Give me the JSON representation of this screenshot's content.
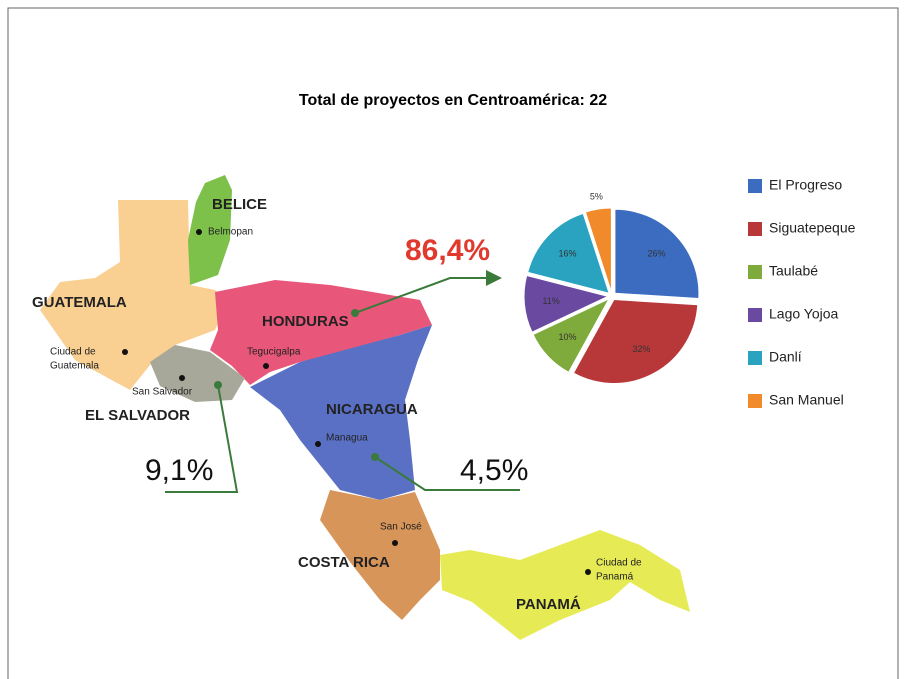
{
  "title": "Total de proyectos en Centroamérica: 22",
  "map": {
    "countries": [
      "BELICE",
      "GUATEMALA",
      "HONDURAS",
      "EL SALVADOR",
      "NICARAGUA",
      "COSTA RICA",
      "PANAMÁ"
    ],
    "cities": [
      [
        "Belmopan"
      ],
      [
        "Ciudad de",
        "Guatemala"
      ],
      [
        "San Salvador"
      ],
      [
        "Tegucigalpa"
      ],
      [
        "Managua"
      ],
      [
        "San José"
      ],
      [
        "Ciudad de",
        "Panamá"
      ]
    ],
    "shares": [
      "86,4%",
      "9,1%",
      "4,5%"
    ]
  },
  "chart_data": {
    "type": "pie",
    "categories": [
      "El Progreso",
      "Siguatepeque",
      "Taulabé",
      "Lago Yojoa",
      "Danlí",
      "San Manuel"
    ],
    "values": [
      26,
      32,
      10,
      11,
      16,
      5
    ],
    "value_labels": [
      "26%",
      "32%",
      "10%",
      "11%",
      "16%",
      "5%"
    ],
    "colors": [
      "#3b6cc0",
      "#b8383a",
      "#7faa3c",
      "#6a4aa0",
      "#2aa3c0",
      "#f08a2a"
    ],
    "legend": "right"
  }
}
